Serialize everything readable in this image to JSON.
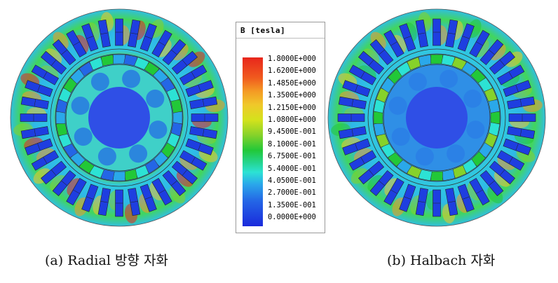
{
  "legend": {
    "title": "B [tesla]",
    "values": [
      "1.8000E+000",
      "1.6200E+000",
      "1.4850E+000",
      "1.3500E+000",
      "1.2150E+000",
      "1.0800E+000",
      "9.4500E-001",
      "8.1000E-001",
      "6.7500E-001",
      "5.4000E-001",
      "4.0500E-001",
      "2.7000E-001",
      "1.3500E-001",
      "0.0000E+000"
    ]
  },
  "captions": {
    "a": "(a) Radial 방향 자화",
    "b": "(b) Halbach 자화"
  },
  "colors": {
    "high": "#e8261c",
    "mid": "#22c838",
    "low": "#1a2adc",
    "field_background": "#2fc9e0",
    "shaft": "#2f4fe6"
  }
}
